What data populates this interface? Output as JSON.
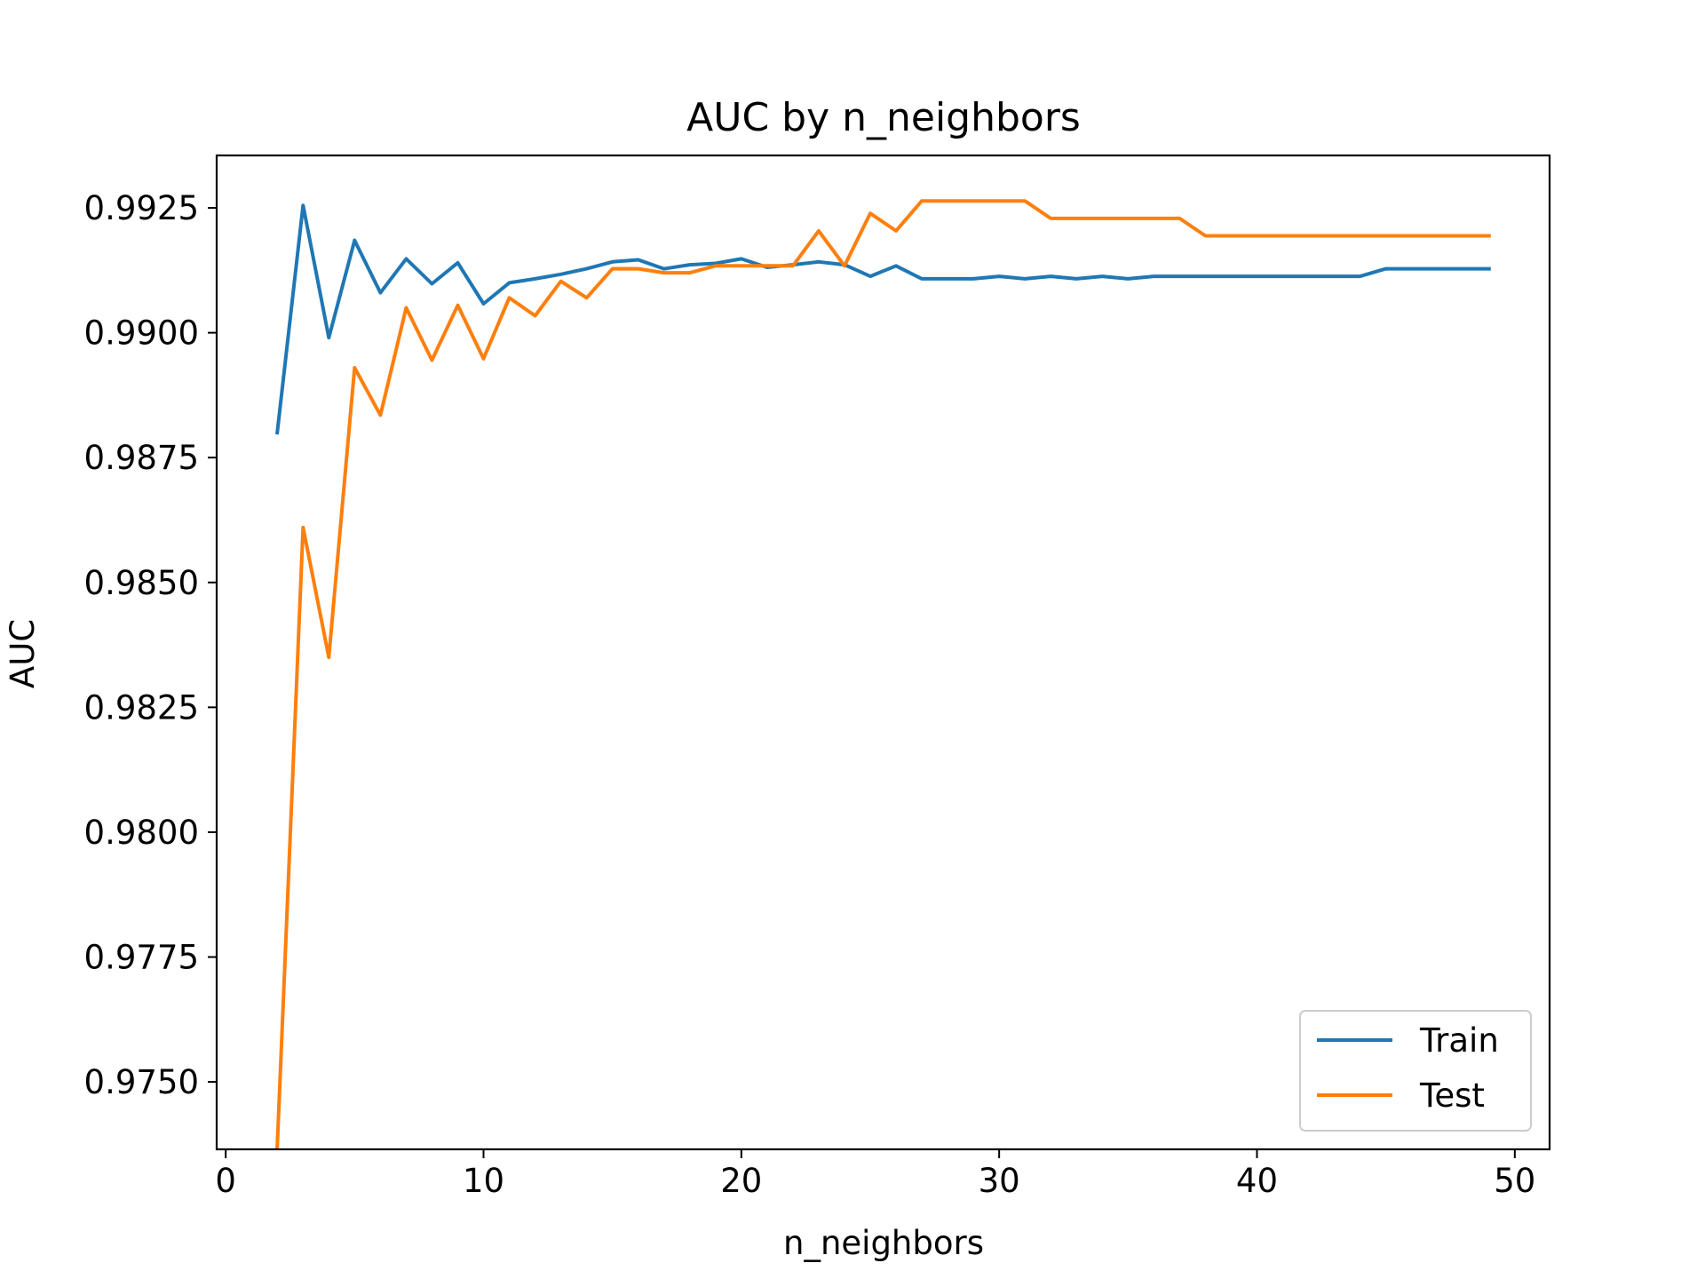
{
  "chart_data": {
    "type": "line",
    "title": "AUC by n_neighbors",
    "xlabel": "n_neighbors",
    "ylabel": "AUC",
    "xlim": [
      -0.35,
      51.35
    ],
    "ylim": [
      0.97365,
      0.99355
    ],
    "xticks": [
      0,
      10,
      20,
      30,
      40,
      50
    ],
    "xtick_labels": [
      "0",
      "10",
      "20",
      "30",
      "40",
      "50"
    ],
    "yticks": [
      0.975,
      0.9775,
      0.98,
      0.9825,
      0.985,
      0.9875,
      0.99,
      0.9925
    ],
    "ytick_labels": [
      "0.9750",
      "0.9775",
      "0.9800",
      "0.9825",
      "0.9850",
      "0.9875",
      "0.9900",
      "0.9925"
    ],
    "grid": false,
    "legend_position": "lower-right",
    "x": [
      2,
      3,
      4,
      5,
      6,
      7,
      8,
      9,
      10,
      11,
      12,
      13,
      14,
      15,
      16,
      17,
      18,
      19,
      20,
      21,
      22,
      23,
      24,
      25,
      26,
      27,
      28,
      29,
      30,
      31,
      32,
      33,
      34,
      35,
      36,
      37,
      38,
      39,
      40,
      41,
      42,
      43,
      44,
      45,
      46,
      47,
      48,
      49
    ],
    "series": [
      {
        "name": "Train",
        "color": "#1f77b4",
        "values": [
          0.988,
          0.99255,
          0.9899,
          0.99185,
          0.9908,
          0.99148,
          0.99098,
          0.9914,
          0.99058,
          0.991,
          0.99108,
          0.99117,
          0.99128,
          0.99142,
          0.99146,
          0.99128,
          0.99136,
          0.99139,
          0.99148,
          0.99131,
          0.99136,
          0.99142,
          0.99136,
          0.99113,
          0.99134,
          0.99108,
          0.99108,
          0.99108,
          0.99113,
          0.99108,
          0.99113,
          0.99108,
          0.99113,
          0.99108,
          0.99113,
          0.99113,
          0.99113,
          0.99113,
          0.99113,
          0.99113,
          0.99113,
          0.99113,
          0.99113,
          0.99128,
          0.99128,
          0.99128,
          0.99128,
          0.99128
        ]
      },
      {
        "name": "Test",
        "color": "#ff7f0e",
        "values": [
          0.9737,
          0.9861,
          0.9835,
          0.9893,
          0.98835,
          0.9905,
          0.98945,
          0.99055,
          0.98948,
          0.9907,
          0.99034,
          0.99103,
          0.9907,
          0.99128,
          0.99128,
          0.9912,
          0.9912,
          0.99134,
          0.99134,
          0.99134,
          0.99134,
          0.99204,
          0.99134,
          0.99239,
          0.99204,
          0.99264,
          0.99264,
          0.99264,
          0.99264,
          0.99264,
          0.99229,
          0.99229,
          0.99229,
          0.99229,
          0.99229,
          0.99229,
          0.99194,
          0.99194,
          0.99194,
          0.99194,
          0.99194,
          0.99194,
          0.99194,
          0.99194,
          0.99194,
          0.99194,
          0.99194,
          0.99194
        ]
      }
    ]
  }
}
